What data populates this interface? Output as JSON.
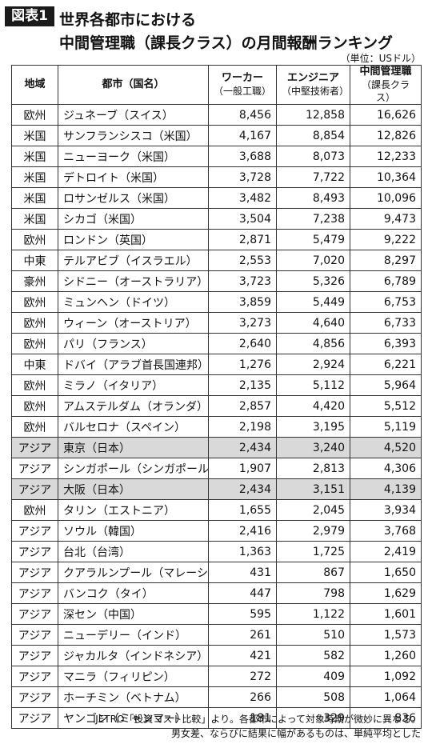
{
  "figure_label": "図表1",
  "title_line1": "世界各都市における",
  "title_line2": "中間管理職（課長クラス）の月間報酬ランキング",
  "unit": "（単位：USドル）",
  "headers": {
    "region": "地域",
    "city": "都市（国名）",
    "worker": "ワーカー",
    "worker_sub": "（一般工職）",
    "engineer": "エンジニア",
    "engineer_sub": "（中堅技術者）",
    "manager": "中間管理職",
    "manager_sub": "（課長クラス）"
  },
  "rows": [
    {
      "region": "欧州",
      "city": "ジュネーブ（スイス）",
      "worker": "8,456",
      "engineer": "12,858",
      "manager": "16,626",
      "highlight": false
    },
    {
      "region": "米国",
      "city": "サンフランシスコ（米国）",
      "worker": "4,167",
      "engineer": "8,854",
      "manager": "12,826",
      "highlight": false
    },
    {
      "region": "米国",
      "city": "ニューヨーク（米国）",
      "worker": "3,688",
      "engineer": "8,073",
      "manager": "12,233",
      "highlight": false
    },
    {
      "region": "米国",
      "city": "デトロイト（米国）",
      "worker": "3,728",
      "engineer": "7,722",
      "manager": "10,364",
      "highlight": false
    },
    {
      "region": "米国",
      "city": "ロサンゼルス（米国）",
      "worker": "3,482",
      "engineer": "8,493",
      "manager": "10,096",
      "highlight": false
    },
    {
      "region": "米国",
      "city": "シカゴ（米国）",
      "worker": "3,504",
      "engineer": "7,238",
      "manager": "9,473",
      "highlight": false
    },
    {
      "region": "欧州",
      "city": "ロンドン（英国）",
      "worker": "2,871",
      "engineer": "5,479",
      "manager": "9,222",
      "highlight": false
    },
    {
      "region": "中東",
      "city": "テルアビブ（イスラエル）",
      "worker": "2,553",
      "engineer": "7,020",
      "manager": "8,297",
      "highlight": false
    },
    {
      "region": "豪州",
      "city": "シドニー（オーストラリア）",
      "worker": "3,723",
      "engineer": "5,326",
      "manager": "6,789",
      "highlight": false
    },
    {
      "region": "欧州",
      "city": "ミュンヘン（ドイツ）",
      "worker": "3,859",
      "engineer": "5,449",
      "manager": "6,753",
      "highlight": false
    },
    {
      "region": "欧州",
      "city": "ウィーン（オーストリア）",
      "worker": "3,273",
      "engineer": "4,640",
      "manager": "6,733",
      "highlight": false
    },
    {
      "region": "欧州",
      "city": "パリ（フランス）",
      "worker": "2,640",
      "engineer": "4,856",
      "manager": "6,393",
      "highlight": false
    },
    {
      "region": "中東",
      "city": "ドバイ（アラブ首長国連邦）",
      "worker": "1,276",
      "engineer": "2,924",
      "manager": "6,221",
      "highlight": false
    },
    {
      "region": "欧州",
      "city": "ミラノ（イタリア）",
      "worker": "2,135",
      "engineer": "5,112",
      "manager": "5,964",
      "highlight": false
    },
    {
      "region": "欧州",
      "city": "アムステルダム（オランダ）",
      "worker": "2,857",
      "engineer": "4,420",
      "manager": "5,512",
      "highlight": false
    },
    {
      "region": "欧州",
      "city": "バルセロナ（スペイン）",
      "worker": "2,198",
      "engineer": "3,195",
      "manager": "5,119",
      "highlight": false
    },
    {
      "region": "アジア",
      "city": "東京（日本）",
      "worker": "2,434",
      "engineer": "3,240",
      "manager": "4,520",
      "highlight": true
    },
    {
      "region": "アジア",
      "city": "シンガポール（シンガポール）",
      "worker": "1,907",
      "engineer": "2,813",
      "manager": "4,306",
      "highlight": false
    },
    {
      "region": "アジア",
      "city": "大阪（日本）",
      "worker": "2,434",
      "engineer": "3,151",
      "manager": "4,139",
      "highlight": true
    },
    {
      "region": "欧州",
      "city": "タリン（エストニア）",
      "worker": "1,655",
      "engineer": "2,045",
      "manager": "3,934",
      "highlight": false
    },
    {
      "region": "アジア",
      "city": "ソウル（韓国）",
      "worker": "2,416",
      "engineer": "2,979",
      "manager": "3,768",
      "highlight": false
    },
    {
      "region": "アジア",
      "city": "台北（台湾）",
      "worker": "1,363",
      "engineer": "1,725",
      "manager": "2,419",
      "highlight": false
    },
    {
      "region": "アジア",
      "city": "クアラルンプール（マレーシア）",
      "worker": "431",
      "engineer": "867",
      "manager": "1,650",
      "highlight": false
    },
    {
      "region": "アジア",
      "city": "バンコク（タイ）",
      "worker": "447",
      "engineer": "798",
      "manager": "1,629",
      "highlight": false
    },
    {
      "region": "アジア",
      "city": "深セン（中国）",
      "worker": "595",
      "engineer": "1,122",
      "manager": "1,601",
      "highlight": false
    },
    {
      "region": "アジア",
      "city": "ニューデリー（インド）",
      "worker": "261",
      "engineer": "510",
      "manager": "1,573",
      "highlight": false
    },
    {
      "region": "アジア",
      "city": "ジャカルタ（インドネシア）",
      "worker": "421",
      "engineer": "582",
      "manager": "1,260",
      "highlight": false
    },
    {
      "region": "アジア",
      "city": "マニラ（フィリピン）",
      "worker": "272",
      "engineer": "409",
      "manager": "1,092",
      "highlight": false
    },
    {
      "region": "アジア",
      "city": "ホーチミン（ベトナム）",
      "worker": "266",
      "engineer": "508",
      "manager": "1,064",
      "highlight": false
    },
    {
      "region": "アジア",
      "city": "ヤンゴン（ミャンマー）",
      "worker": "181",
      "engineer": "329",
      "manager": "836",
      "highlight": false
    }
  ],
  "notes": [
    "JETRO「投資コスト比較」より。各都市によって対象時期が微妙に異なる。",
    "男女差、ならびに結果に幅があるものは、単純平均とした"
  ]
}
